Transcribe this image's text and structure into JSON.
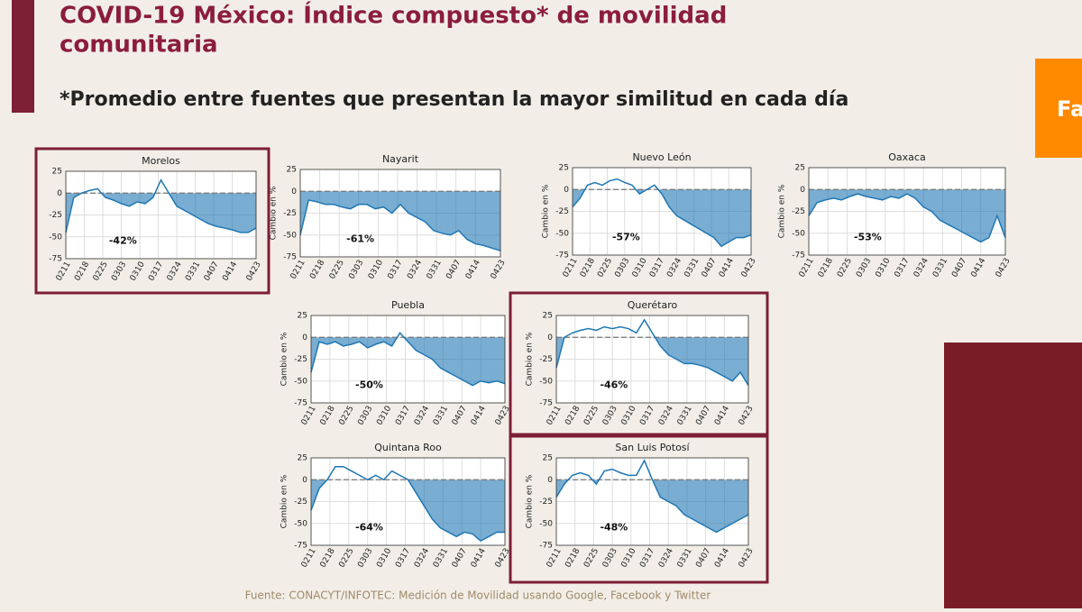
{
  "slide": {
    "title_line1": "COVID-19 México: Índice compuesto* de movilidad",
    "title_line2": "comunitaria",
    "subtitle": "*Promedio entre fuentes que presentan la mayor similitud en cada día",
    "source": "Fuente: CONACYT/INFOTEC: Medición de Movilidad usando Google, Facebook y Twitter",
    "side_tab": "Fa"
  },
  "chart_data": [
    {
      "type": "area",
      "title": "Morelos",
      "highlight": true,
      "annotation": "-42%",
      "color": "#1f77b4",
      "grid": true,
      "x": [
        0,
        3,
        6,
        9,
        12,
        15,
        18,
        21,
        24,
        27,
        30,
        33,
        36,
        39,
        42,
        45,
        48,
        51,
        54,
        57,
        60,
        63,
        66,
        69,
        72
      ],
      "values": [
        -45,
        -5,
        0,
        3,
        5,
        -5,
        -8,
        -12,
        -15,
        -10,
        -12,
        -5,
        15,
        0,
        -15,
        -20,
        -25,
        -30,
        -35,
        -38,
        -40,
        -42,
        -45,
        -45,
        -40
      ],
      "xlim": [
        0,
        72
      ],
      "xticks": [
        {
          "value": 0,
          "label": "0211"
        },
        {
          "value": 7,
          "label": "0218"
        },
        {
          "value": 14,
          "label": "0225"
        },
        {
          "value": 21,
          "label": "0303"
        },
        {
          "value": 28,
          "label": "0310"
        },
        {
          "value": 35,
          "label": "0317"
        },
        {
          "value": 42,
          "label": "0324"
        },
        {
          "value": 49,
          "label": "0331"
        },
        {
          "value": 56,
          "label": "0407"
        },
        {
          "value": 63,
          "label": "0414"
        },
        {
          "value": 72,
          "label": "0423"
        }
      ],
      "ylim": [
        -75,
        25
      ],
      "yticks": [
        25,
        0,
        -25,
        -50,
        -75
      ]
    },
    {
      "type": "area",
      "title": "Nayarit",
      "y_label": "Cambio en %",
      "highlight": false,
      "annotation": "-61%",
      "color": "#1f77b4",
      "grid": true,
      "x": [
        0,
        3,
        6,
        9,
        12,
        15,
        18,
        21,
        24,
        27,
        30,
        33,
        36,
        39,
        42,
        45,
        48,
        51,
        54,
        57,
        60,
        63,
        66,
        69,
        72
      ],
      "values": [
        -50,
        -10,
        -12,
        -15,
        -15,
        -18,
        -20,
        -15,
        -15,
        -20,
        -18,
        -25,
        -15,
        -25,
        -30,
        -35,
        -45,
        -48,
        -50,
        -45,
        -55,
        -60,
        -62,
        -65,
        -68
      ],
      "xlim": [
        0,
        72
      ],
      "xticks": [
        {
          "value": 0,
          "label": "0211"
        },
        {
          "value": 7,
          "label": "0218"
        },
        {
          "value": 14,
          "label": "0225"
        },
        {
          "value": 21,
          "label": "0303"
        },
        {
          "value": 28,
          "label": "0310"
        },
        {
          "value": 35,
          "label": "0317"
        },
        {
          "value": 42,
          "label": "0324"
        },
        {
          "value": 49,
          "label": "0331"
        },
        {
          "value": 56,
          "label": "0407"
        },
        {
          "value": 63,
          "label": "0414"
        },
        {
          "value": 72,
          "label": "0423"
        }
      ],
      "ylim": [
        -75,
        25
      ],
      "yticks": [
        25,
        0,
        -25,
        -50,
        -75
      ]
    },
    {
      "type": "area",
      "title": "Nuevo León",
      "y_label": "Cambio en %",
      "highlight": false,
      "annotation": "-57%",
      "color": "#1f77b4",
      "grid": true,
      "x": [
        0,
        3,
        6,
        9,
        12,
        15,
        18,
        21,
        24,
        27,
        30,
        33,
        36,
        39,
        42,
        45,
        48,
        51,
        54,
        57,
        60,
        63,
        66,
        69,
        72
      ],
      "values": [
        -20,
        -10,
        5,
        8,
        5,
        10,
        12,
        8,
        5,
        -5,
        0,
        5,
        -5,
        -20,
        -30,
        -35,
        -40,
        -45,
        -50,
        -55,
        -65,
        -60,
        -55,
        -55,
        -52
      ],
      "xlim": [
        0,
        72
      ],
      "xticks": [
        {
          "value": 0,
          "label": "0211"
        },
        {
          "value": 7,
          "label": "0218"
        },
        {
          "value": 14,
          "label": "0225"
        },
        {
          "value": 21,
          "label": "0303"
        },
        {
          "value": 28,
          "label": "0310"
        },
        {
          "value": 35,
          "label": "0317"
        },
        {
          "value": 42,
          "label": "0324"
        },
        {
          "value": 49,
          "label": "0331"
        },
        {
          "value": 56,
          "label": "0407"
        },
        {
          "value": 63,
          "label": "0414"
        },
        {
          "value": 72,
          "label": "0423"
        }
      ],
      "ylim": [
        -75,
        25
      ],
      "yticks": [
        25,
        0,
        -25,
        -50,
        -75
      ]
    },
    {
      "type": "area",
      "title": "Oaxaca",
      "y_label": "Cambio en %",
      "highlight": false,
      "annotation": "-53%",
      "color": "#1f77b4",
      "grid": true,
      "x": [
        0,
        3,
        6,
        9,
        12,
        15,
        18,
        21,
        24,
        27,
        30,
        33,
        36,
        39,
        42,
        45,
        48,
        51,
        54,
        57,
        60,
        63,
        66,
        69,
        72
      ],
      "values": [
        -30,
        -15,
        -12,
        -10,
        -12,
        -8,
        -5,
        -8,
        -10,
        -12,
        -8,
        -10,
        -5,
        -10,
        -20,
        -25,
        -35,
        -40,
        -45,
        -50,
        -55,
        -60,
        -55,
        -30,
        -55
      ],
      "xlim": [
        0,
        72
      ],
      "xticks": [
        {
          "value": 0,
          "label": "0211"
        },
        {
          "value": 7,
          "label": "0218"
        },
        {
          "value": 14,
          "label": "0225"
        },
        {
          "value": 21,
          "label": "0303"
        },
        {
          "value": 28,
          "label": "0310"
        },
        {
          "value": 35,
          "label": "0317"
        },
        {
          "value": 42,
          "label": "0324"
        },
        {
          "value": 49,
          "label": "0331"
        },
        {
          "value": 56,
          "label": "0407"
        },
        {
          "value": 63,
          "label": "0414"
        },
        {
          "value": 72,
          "label": "0423"
        }
      ],
      "ylim": [
        -75,
        25
      ],
      "yticks": [
        25,
        0,
        -25,
        -50,
        -75
      ]
    },
    {
      "type": "area",
      "title": "Puebla",
      "y_label": "Cambio en %",
      "highlight": false,
      "annotation": "-50%",
      "color": "#1f77b4",
      "grid": true,
      "x": [
        0,
        3,
        6,
        9,
        12,
        15,
        18,
        21,
        24,
        27,
        30,
        33,
        36,
        39,
        42,
        45,
        48,
        51,
        54,
        57,
        60,
        63,
        66,
        69,
        72
      ],
      "values": [
        -40,
        -5,
        -8,
        -5,
        -10,
        -8,
        -5,
        -12,
        -8,
        -5,
        -10,
        5,
        -5,
        -15,
        -20,
        -25,
        -35,
        -40,
        -45,
        -50,
        -55,
        -50,
        -52,
        -50,
        -53
      ],
      "xlim": [
        0,
        72
      ],
      "xticks": [
        {
          "value": 0,
          "label": "0211"
        },
        {
          "value": 7,
          "label": "0218"
        },
        {
          "value": 14,
          "label": "0225"
        },
        {
          "value": 21,
          "label": "0303"
        },
        {
          "value": 28,
          "label": "0310"
        },
        {
          "value": 35,
          "label": "0317"
        },
        {
          "value": 42,
          "label": "0324"
        },
        {
          "value": 49,
          "label": "0331"
        },
        {
          "value": 56,
          "label": "0407"
        },
        {
          "value": 63,
          "label": "0414"
        },
        {
          "value": 72,
          "label": "0423"
        }
      ],
      "ylim": [
        -75,
        25
      ],
      "yticks": [
        25,
        0,
        -25,
        -50,
        -75
      ]
    },
    {
      "type": "area",
      "title": "Querétaro",
      "y_label": "Cambio en %",
      "highlight": true,
      "annotation": "-46%",
      "color": "#1f77b4",
      "grid": true,
      "x": [
        0,
        3,
        6,
        9,
        12,
        15,
        18,
        21,
        24,
        27,
        30,
        33,
        36,
        39,
        42,
        45,
        48,
        51,
        54,
        57,
        60,
        63,
        66,
        69,
        72
      ],
      "values": [
        -35,
        0,
        5,
        8,
        10,
        8,
        12,
        10,
        12,
        10,
        5,
        20,
        5,
        -10,
        -20,
        -25,
        -30,
        -30,
        -32,
        -35,
        -40,
        -45,
        -50,
        -40,
        -55
      ],
      "xlim": [
        0,
        72
      ],
      "xticks": [
        {
          "value": 0,
          "label": "0211"
        },
        {
          "value": 7,
          "label": "0218"
        },
        {
          "value": 14,
          "label": "0225"
        },
        {
          "value": 21,
          "label": "0303"
        },
        {
          "value": 28,
          "label": "0310"
        },
        {
          "value": 35,
          "label": "0317"
        },
        {
          "value": 42,
          "label": "0324"
        },
        {
          "value": 49,
          "label": "0331"
        },
        {
          "value": 56,
          "label": "0407"
        },
        {
          "value": 63,
          "label": "0414"
        },
        {
          "value": 72,
          "label": "0423"
        }
      ],
      "ylim": [
        -75,
        25
      ],
      "yticks": [
        25,
        0,
        -25,
        -50,
        -75
      ]
    },
    {
      "type": "area",
      "title": "Quintana Roo",
      "y_label": "Cambio en %",
      "highlight": false,
      "annotation": "-64%",
      "color": "#1f77b4",
      "grid": true,
      "x": [
        0,
        3,
        6,
        9,
        12,
        15,
        18,
        21,
        24,
        27,
        30,
        33,
        36,
        39,
        42,
        45,
        48,
        51,
        54,
        57,
        60,
        63,
        66,
        69,
        72
      ],
      "values": [
        -35,
        -10,
        0,
        15,
        15,
        10,
        5,
        0,
        5,
        0,
        10,
        5,
        0,
        -15,
        -30,
        -45,
        -55,
        -60,
        -65,
        -60,
        -62,
        -70,
        -65,
        -60,
        -60
      ],
      "xlim": [
        0,
        72
      ],
      "xticks": [
        {
          "value": 0,
          "label": "0211"
        },
        {
          "value": 7,
          "label": "0218"
        },
        {
          "value": 14,
          "label": "0225"
        },
        {
          "value": 21,
          "label": "0303"
        },
        {
          "value": 28,
          "label": "0310"
        },
        {
          "value": 35,
          "label": "0317"
        },
        {
          "value": 42,
          "label": "0324"
        },
        {
          "value": 49,
          "label": "0331"
        },
        {
          "value": 56,
          "label": "0407"
        },
        {
          "value": 63,
          "label": "0414"
        },
        {
          "value": 72,
          "label": "0423"
        }
      ],
      "ylim": [
        -75,
        25
      ],
      "yticks": [
        25,
        0,
        -25,
        -50,
        -75
      ]
    },
    {
      "type": "area",
      "title": "San Luis Potosí",
      "y_label": "Cambio en %",
      "highlight": true,
      "annotation": "-48%",
      "color": "#1f77b4",
      "grid": true,
      "x": [
        0,
        3,
        6,
        9,
        12,
        15,
        18,
        21,
        24,
        27,
        30,
        33,
        36,
        39,
        42,
        45,
        48,
        51,
        54,
        57,
        60,
        63,
        66,
        69,
        72
      ],
      "values": [
        -20,
        -5,
        5,
        8,
        5,
        -5,
        10,
        12,
        8,
        5,
        5,
        22,
        0,
        -20,
        -25,
        -30,
        -40,
        -45,
        -50,
        -55,
        -60,
        -55,
        -50,
        -45,
        -40
      ],
      "xlim": [
        0,
        72
      ],
      "xticks": [
        {
          "value": 0,
          "label": "0211"
        },
        {
          "value": 7,
          "label": "0218"
        },
        {
          "value": 14,
          "label": "0225"
        },
        {
          "value": 21,
          "label": "0303"
        },
        {
          "value": 28,
          "label": "0310"
        },
        {
          "value": 35,
          "label": "0317"
        },
        {
          "value": 42,
          "label": "0324"
        },
        {
          "value": 49,
          "label": "0331"
        },
        {
          "value": 56,
          "label": "0407"
        },
        {
          "value": 63,
          "label": "0414"
        },
        {
          "value": 72,
          "label": "0423"
        }
      ],
      "ylim": [
        -75,
        25
      ],
      "yticks": [
        25,
        0,
        -25,
        -50,
        -75
      ]
    }
  ]
}
